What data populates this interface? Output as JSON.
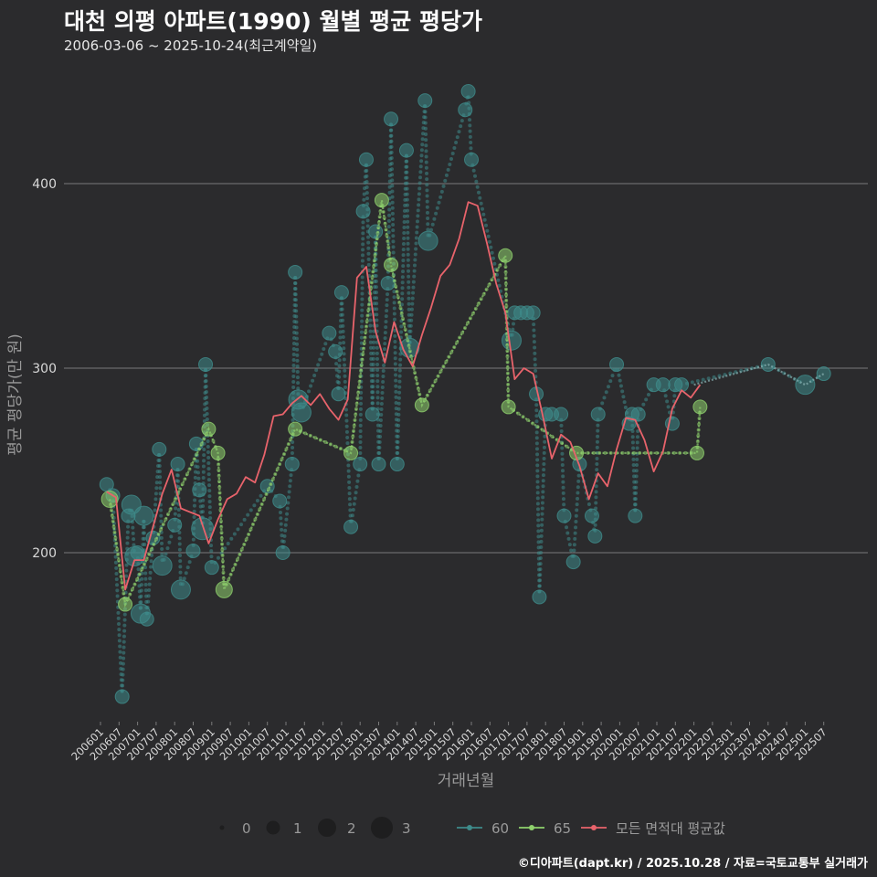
{
  "title": "대천 의평 아파트(1990) 월별 평균 평당가",
  "subtitle": "2006-03-06 ~ 2025-10-24(최근계약일)",
  "footer": "©디아파트(dapt.kr) / 2025.10.28 / 자료=국토교통부 실거래가",
  "colors": {
    "background": "#2b2b2d",
    "grid": "#7a7a7a",
    "series_60": "#3e8b8a",
    "series_65": "#8fd16d",
    "avg_line": "#e8636b",
    "text": "#d9d9d9"
  },
  "chart_data": {
    "type": "line",
    "xlabel": "거래년월",
    "ylabel": "평균 평당가(만 원)",
    "ylim": [
      105,
      470
    ],
    "xlim": [
      "200601",
      "202510"
    ],
    "yticks": [
      200,
      300,
      400
    ],
    "grid": true,
    "categories": [
      "200601",
      "200607",
      "200701",
      "200707",
      "200801",
      "200807",
      "200901",
      "200907",
      "201001",
      "201007",
      "201101",
      "201107",
      "201201",
      "201207",
      "201301",
      "201307",
      "201401",
      "201407",
      "201501",
      "201507",
      "201601",
      "201607",
      "201701",
      "201707",
      "201801",
      "201807",
      "201901",
      "201907",
      "202001",
      "202007",
      "202101",
      "202107",
      "202201",
      "202207",
      "202301",
      "202307",
      "202401",
      "202407",
      "202501",
      "202507"
    ],
    "size_legend": {
      "title": "",
      "labels": [
        "0",
        "1",
        "2",
        "3"
      ]
    },
    "series": [
      {
        "name": "60",
        "points": [
          {
            "x": "200603",
            "y": 237,
            "size": 1.5
          },
          {
            "x": "200605",
            "y": 231,
            "size": 1.5
          },
          {
            "x": "200608",
            "y": 122,
            "size": 1.5
          },
          {
            "x": "200610",
            "y": 220,
            "size": 1.5
          },
          {
            "x": "200611",
            "y": 226,
            "size": 2.5
          },
          {
            "x": "200612",
            "y": 198,
            "size": 2.5
          },
          {
            "x": "200701",
            "y": 200,
            "size": 1.5
          },
          {
            "x": "200702",
            "y": 167,
            "size": 2.5
          },
          {
            "x": "200703",
            "y": 220,
            "size": 2.5
          },
          {
            "x": "200704",
            "y": 164,
            "size": 1.5
          },
          {
            "x": "200706",
            "y": 208,
            "size": 1.5
          },
          {
            "x": "200708",
            "y": 256,
            "size": 1.5
          },
          {
            "x": "200709",
            "y": 193,
            "size": 2.5
          },
          {
            "x": "200801",
            "y": 215,
            "size": 1.5
          },
          {
            "x": "200802",
            "y": 248,
            "size": 1.5
          },
          {
            "x": "200803",
            "y": 180,
            "size": 2.5
          },
          {
            "x": "200807",
            "y": 201,
            "size": 1.5
          },
          {
            "x": "200808",
            "y": 259,
            "size": 1.5
          },
          {
            "x": "200809",
            "y": 234,
            "size": 1.5
          },
          {
            "x": "200810",
            "y": 213,
            "size": 3
          },
          {
            "x": "200811",
            "y": 302,
            "size": 1.5
          },
          {
            "x": "200901",
            "y": 192,
            "size": 1.5
          },
          {
            "x": "201007",
            "y": 236,
            "size": 1.5
          },
          {
            "x": "201011",
            "y": 228,
            "size": 1.5
          },
          {
            "x": "201012",
            "y": 200,
            "size": 1.5
          },
          {
            "x": "201103",
            "y": 248,
            "size": 1.5
          },
          {
            "x": "201104",
            "y": 352,
            "size": 1.5
          },
          {
            "x": "201105",
            "y": 283,
            "size": 2.5
          },
          {
            "x": "201106",
            "y": 276,
            "size": 2.5
          },
          {
            "x": "201203",
            "y": 319,
            "size": 1.5
          },
          {
            "x": "201205",
            "y": 309,
            "size": 1.5
          },
          {
            "x": "201206",
            "y": 286,
            "size": 1.5
          },
          {
            "x": "201207",
            "y": 341,
            "size": 1.5
          },
          {
            "x": "201210",
            "y": 214,
            "size": 1.5
          },
          {
            "x": "201301",
            "y": 248,
            "size": 1.5
          },
          {
            "x": "201302",
            "y": 385,
            "size": 1.5
          },
          {
            "x": "201303",
            "y": 413,
            "size": 1.5
          },
          {
            "x": "201305",
            "y": 275,
            "size": 1.5
          },
          {
            "x": "201306",
            "y": 374,
            "size": 1.5
          },
          {
            "x": "201307",
            "y": 248,
            "size": 1.5
          },
          {
            "x": "201310",
            "y": 346,
            "size": 1.5
          },
          {
            "x": "201311",
            "y": 435,
            "size": 1.5
          },
          {
            "x": "201401",
            "y": 248,
            "size": 1.5
          },
          {
            "x": "201404",
            "y": 418,
            "size": 1.5
          },
          {
            "x": "201405",
            "y": 311,
            "size": 2.5
          },
          {
            "x": "201410",
            "y": 445,
            "size": 1.5
          },
          {
            "x": "201411",
            "y": 369,
            "size": 2.5
          },
          {
            "x": "201511",
            "y": 440,
            "size": 1.5
          },
          {
            "x": "201512",
            "y": 450,
            "size": 1.5
          },
          {
            "x": "201601",
            "y": 413,
            "size": 1.5
          },
          {
            "x": "201702",
            "y": 315,
            "size": 2.5
          },
          {
            "x": "201703",
            "y": 330,
            "size": 1.5
          },
          {
            "x": "201705",
            "y": 330,
            "size": 1.5
          },
          {
            "x": "201707",
            "y": 330,
            "size": 1.5
          },
          {
            "x": "201709",
            "y": 330,
            "size": 1.5
          },
          {
            "x": "201710",
            "y": 286,
            "size": 1.5
          },
          {
            "x": "201711",
            "y": 176,
            "size": 1.5
          },
          {
            "x": "201801",
            "y": 275,
            "size": 1.5
          },
          {
            "x": "201803",
            "y": 275,
            "size": 1.5
          },
          {
            "x": "201806",
            "y": 275,
            "size": 1.5
          },
          {
            "x": "201807",
            "y": 220,
            "size": 1.5
          },
          {
            "x": "201810",
            "y": 195,
            "size": 1.5
          },
          {
            "x": "201812",
            "y": 248,
            "size": 1.5
          },
          {
            "x": "201904",
            "y": 220,
            "size": 1.5
          },
          {
            "x": "201905",
            "y": 209,
            "size": 1.5
          },
          {
            "x": "201906",
            "y": 275,
            "size": 1.5
          },
          {
            "x": "201912",
            "y": 302,
            "size": 1.5
          },
          {
            "x": "202004",
            "y": 270,
            "size": 1.5
          },
          {
            "x": "202005",
            "y": 275,
            "size": 1.5
          },
          {
            "x": "202006",
            "y": 220,
            "size": 1.5
          },
          {
            "x": "202007",
            "y": 275,
            "size": 1.5
          },
          {
            "x": "202012",
            "y": 291,
            "size": 1.5
          },
          {
            "x": "202103",
            "y": 291,
            "size": 1.5
          },
          {
            "x": "202106",
            "y": 270,
            "size": 1.5
          },
          {
            "x": "202107",
            "y": 291,
            "size": 1.5
          },
          {
            "x": "202109",
            "y": 291,
            "size": 1.5
          },
          {
            "x": "202401",
            "y": 302,
            "size": 1.5
          },
          {
            "x": "202501",
            "y": 291,
            "size": 2.5
          },
          {
            "x": "202507",
            "y": 297,
            "size": 1.5
          }
        ],
        "line": [
          {
            "x": "200603",
            "y": 237
          },
          {
            "x": "200605",
            "y": 231
          },
          {
            "x": "201007",
            "y": 236
          },
          {
            "x": "201011",
            "y": 228
          },
          {
            "x": "201105",
            "y": 275
          },
          {
            "x": "201106",
            "y": 276
          },
          {
            "x": "201707",
            "y": 330
          },
          {
            "x": "201709",
            "y": 330
          },
          {
            "x": "201803",
            "y": 275
          },
          {
            "x": "201806",
            "y": 275
          },
          {
            "x": "202201",
            "y": 291
          },
          {
            "x": "202401",
            "y": 302
          },
          {
            "x": "202501",
            "y": 291
          },
          {
            "x": "202507",
            "y": 297
          }
        ]
      },
      {
        "name": "65",
        "points": [
          {
            "x": "200604",
            "y": 229,
            "size": 2
          },
          {
            "x": "200609",
            "y": 172,
            "size": 1.5
          },
          {
            "x": "200812",
            "y": 267,
            "size": 1.5
          },
          {
            "x": "200903",
            "y": 254,
            "size": 1.5
          },
          {
            "x": "200905",
            "y": 180,
            "size": 2
          },
          {
            "x": "201104",
            "y": 267,
            "size": 1.5
          },
          {
            "x": "201210",
            "y": 254,
            "size": 1.5
          },
          {
            "x": "201308",
            "y": 391,
            "size": 1.5
          },
          {
            "x": "201311",
            "y": 356,
            "size": 1.5
          },
          {
            "x": "201409",
            "y": 280,
            "size": 1.5
          },
          {
            "x": "201612",
            "y": 361,
            "size": 1.5
          },
          {
            "x": "201701",
            "y": 279,
            "size": 1.5
          },
          {
            "x": "201811",
            "y": 254,
            "size": 1.5
          },
          {
            "x": "202202",
            "y": 254,
            "size": 1.5
          },
          {
            "x": "202203",
            "y": 279,
            "size": 1.5
          }
        ],
        "line": [
          {
            "x": "200604",
            "y": 229
          },
          {
            "x": "200609",
            "y": 172
          },
          {
            "x": "200812",
            "y": 267
          },
          {
            "x": "200903",
            "y": 254
          },
          {
            "x": "200905",
            "y": 180
          },
          {
            "x": "201104",
            "y": 267
          },
          {
            "x": "201210",
            "y": 254
          },
          {
            "x": "201308",
            "y": 391
          },
          {
            "x": "201311",
            "y": 356
          },
          {
            "x": "201409",
            "y": 280
          },
          {
            "x": "201612",
            "y": 361
          },
          {
            "x": "201701",
            "y": 279
          },
          {
            "x": "201811",
            "y": 254
          },
          {
            "x": "202202",
            "y": 254
          },
          {
            "x": "202203",
            "y": 279
          }
        ]
      },
      {
        "name": "모든 면적대 평균값",
        "line": [
          {
            "x": "200603",
            "y": 233
          },
          {
            "x": "200606",
            "y": 230
          },
          {
            "x": "200609",
            "y": 180
          },
          {
            "x": "200612",
            "y": 196
          },
          {
            "x": "200703",
            "y": 196
          },
          {
            "x": "200706",
            "y": 214
          },
          {
            "x": "200709",
            "y": 232
          },
          {
            "x": "200712",
            "y": 245
          },
          {
            "x": "200803",
            "y": 224
          },
          {
            "x": "200806",
            "y": 222
          },
          {
            "x": "200809",
            "y": 220
          },
          {
            "x": "200812",
            "y": 205
          },
          {
            "x": "200903",
            "y": 218
          },
          {
            "x": "200906",
            "y": 229
          },
          {
            "x": "200909",
            "y": 232
          },
          {
            "x": "200912",
            "y": 241
          },
          {
            "x": "201003",
            "y": 238
          },
          {
            "x": "201006",
            "y": 253
          },
          {
            "x": "201009",
            "y": 274
          },
          {
            "x": "201012",
            "y": 275
          },
          {
            "x": "201103",
            "y": 281
          },
          {
            "x": "201106",
            "y": 285
          },
          {
            "x": "201109",
            "y": 280
          },
          {
            "x": "201112",
            "y": 286
          },
          {
            "x": "201203",
            "y": 278
          },
          {
            "x": "201206",
            "y": 272
          },
          {
            "x": "201209",
            "y": 283
          },
          {
            "x": "201212",
            "y": 349
          },
          {
            "x": "201303",
            "y": 355
          },
          {
            "x": "201306",
            "y": 320
          },
          {
            "x": "201309",
            "y": 303
          },
          {
            "x": "201312",
            "y": 325
          },
          {
            "x": "201403",
            "y": 310
          },
          {
            "x": "201406",
            "y": 301
          },
          {
            "x": "201409",
            "y": 318
          },
          {
            "x": "201412",
            "y": 333
          },
          {
            "x": "201503",
            "y": 350
          },
          {
            "x": "201506",
            "y": 356
          },
          {
            "x": "201509",
            "y": 370
          },
          {
            "x": "201512",
            "y": 390
          },
          {
            "x": "201603",
            "y": 388
          },
          {
            "x": "201606",
            "y": 368
          },
          {
            "x": "201609",
            "y": 346
          },
          {
            "x": "201612",
            "y": 330
          },
          {
            "x": "201703",
            "y": 294
          },
          {
            "x": "201706",
            "y": 300
          },
          {
            "x": "201709",
            "y": 297
          },
          {
            "x": "201712",
            "y": 275
          },
          {
            "x": "201803",
            "y": 251
          },
          {
            "x": "201806",
            "y": 264
          },
          {
            "x": "201809",
            "y": 260
          },
          {
            "x": "201812",
            "y": 247
          },
          {
            "x": "201903",
            "y": 229
          },
          {
            "x": "201906",
            "y": 243
          },
          {
            "x": "201909",
            "y": 236
          },
          {
            "x": "201912",
            "y": 256
          },
          {
            "x": "202003",
            "y": 273
          },
          {
            "x": "202006",
            "y": 272
          },
          {
            "x": "202009",
            "y": 261
          },
          {
            "x": "202012",
            "y": 244
          },
          {
            "x": "202103",
            "y": 255
          },
          {
            "x": "202106",
            "y": 278
          },
          {
            "x": "202109",
            "y": 288
          },
          {
            "x": "202112",
            "y": 284
          },
          {
            "x": "202203",
            "y": 291
          }
        ]
      }
    ]
  }
}
